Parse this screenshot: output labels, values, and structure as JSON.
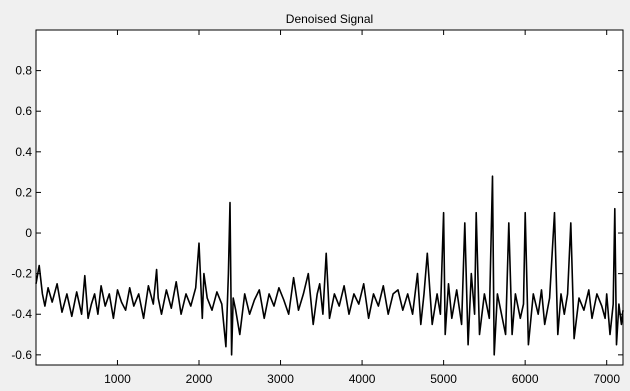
{
  "chart_data": {
    "type": "line",
    "title": "Denoised Signal",
    "xlabel": "",
    "ylabel": "",
    "xlim": [
      1,
      7200
    ],
    "ylim": [
      -0.65,
      1.0
    ],
    "xticks": [
      1000,
      2000,
      3000,
      4000,
      5000,
      6000,
      7000
    ],
    "yticks": [
      -0.6,
      -0.4,
      -0.2,
      0,
      0.2,
      0.4,
      0.6,
      0.8
    ],
    "grid": false,
    "series": [
      {
        "color": "#000000",
        "x": [
          1,
          40,
          80,
          110,
          150,
          200,
          260,
          320,
          380,
          440,
          500,
          560,
          600,
          640,
          680,
          720,
          760,
          800,
          850,
          900,
          950,
          1000,
          1050,
          1100,
          1150,
          1200,
          1260,
          1320,
          1380,
          1440,
          1480,
          1500,
          1540,
          1600,
          1660,
          1720,
          1780,
          1840,
          1900,
          1960,
          2000,
          2040,
          2060,
          2100,
          2160,
          2220,
          2280,
          2330,
          2360,
          2380,
          2400,
          2420,
          2450,
          2500,
          2560,
          2620,
          2680,
          2740,
          2800,
          2860,
          2920,
          2980,
          3040,
          3100,
          3160,
          3220,
          3280,
          3340,
          3400,
          3450,
          3480,
          3520,
          3560,
          3600,
          3660,
          3720,
          3780,
          3840,
          3900,
          3960,
          4020,
          4080,
          4140,
          4200,
          4260,
          4320,
          4380,
          4440,
          4500,
          4560,
          4620,
          4680,
          4720,
          4760,
          4800,
          4860,
          4920,
          4960,
          5000,
          5020,
          5060,
          5100,
          5160,
          5220,
          5260,
          5300,
          5340,
          5380,
          5400,
          5440,
          5500,
          5560,
          5600,
          5620,
          5660,
          5700,
          5760,
          5800,
          5840,
          5880,
          5940,
          5980,
          6000,
          6040,
          6100,
          6160,
          6200,
          6240,
          6300,
          6360,
          6400,
          6440,
          6480,
          6520,
          6560,
          6600,
          6660,
          6720,
          6780,
          6820,
          6880,
          6940,
          6980,
          7000,
          7040,
          7080,
          7100,
          7120,
          7150,
          7180,
          7200
        ],
        "y": [
          -0.25,
          -0.16,
          -0.3,
          -0.36,
          -0.27,
          -0.34,
          -0.25,
          -0.39,
          -0.3,
          -0.41,
          -0.29,
          -0.4,
          -0.21,
          -0.42,
          -0.35,
          -0.3,
          -0.4,
          -0.26,
          -0.36,
          -0.3,
          -0.42,
          -0.28,
          -0.34,
          -0.38,
          -0.27,
          -0.36,
          -0.3,
          -0.42,
          -0.26,
          -0.35,
          -0.18,
          -0.32,
          -0.4,
          -0.28,
          -0.37,
          -0.24,
          -0.4,
          -0.3,
          -0.36,
          -0.27,
          -0.05,
          -0.42,
          -0.2,
          -0.32,
          -0.38,
          -0.29,
          -0.35,
          -0.56,
          -0.2,
          0.15,
          -0.6,
          -0.32,
          -0.38,
          -0.5,
          -0.3,
          -0.4,
          -0.33,
          -0.28,
          -0.42,
          -0.3,
          -0.36,
          -0.27,
          -0.33,
          -0.4,
          -0.22,
          -0.38,
          -0.3,
          -0.2,
          -0.45,
          -0.3,
          -0.25,
          -0.4,
          -0.1,
          -0.42,
          -0.3,
          -0.36,
          -0.26,
          -0.4,
          -0.3,
          -0.35,
          -0.25,
          -0.42,
          -0.3,
          -0.36,
          -0.26,
          -0.4,
          -0.3,
          -0.28,
          -0.38,
          -0.3,
          -0.4,
          -0.2,
          -0.45,
          -0.3,
          -0.1,
          -0.45,
          -0.3,
          -0.4,
          0.1,
          -0.5,
          -0.25,
          -0.42,
          -0.28,
          -0.45,
          0.05,
          -0.55,
          -0.2,
          -0.4,
          0.1,
          -0.5,
          -0.3,
          -0.42,
          0.28,
          -0.6,
          -0.3,
          -0.38,
          -0.5,
          0.05,
          -0.5,
          -0.3,
          -0.42,
          -0.35,
          0.1,
          -0.55,
          -0.3,
          -0.4,
          -0.28,
          -0.45,
          -0.32,
          0.1,
          -0.5,
          -0.3,
          -0.4,
          -0.3,
          0.05,
          -0.52,
          -0.32,
          -0.38,
          -0.28,
          -0.42,
          -0.3,
          -0.36,
          -0.42,
          -0.3,
          -0.5,
          -0.35,
          0.12,
          -0.55,
          -0.35,
          -0.45,
          -0.38
        ]
      }
    ]
  }
}
